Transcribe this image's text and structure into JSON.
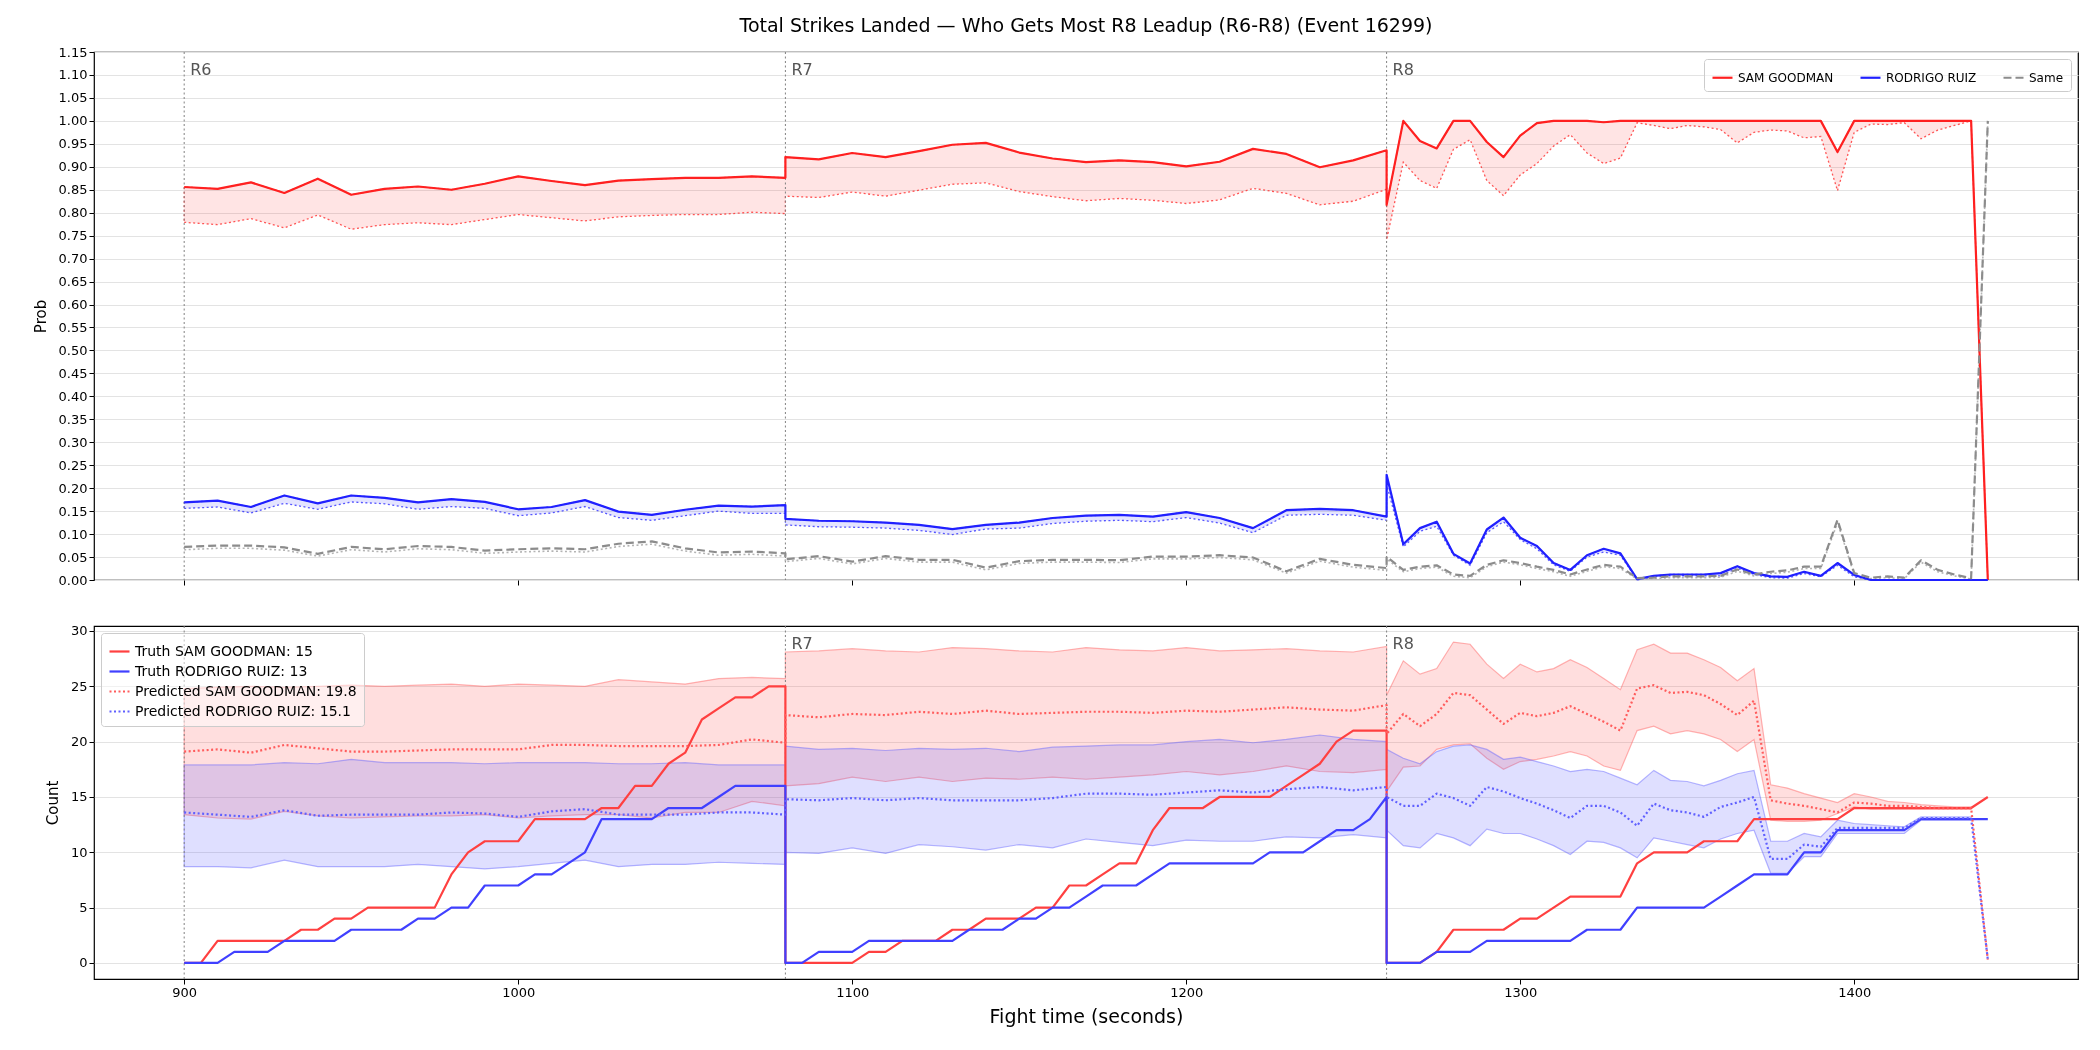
{
  "chart_data": [
    {
      "type": "line",
      "title": "Total Strikes Landed — Who Gets Most R8 Leadup (R6-R8) (Event 16299)",
      "ylabel": "Prob",
      "x": [
        900,
        910,
        920,
        930,
        940,
        950,
        960,
        970,
        980,
        990,
        1000,
        1010,
        1020,
        1030,
        1040,
        1050,
        1060,
        1070,
        1080,
        1080,
        1090,
        1100,
        1110,
        1120,
        1130,
        1140,
        1150,
        1160,
        1170,
        1180,
        1190,
        1200,
        1210,
        1220,
        1230,
        1240,
        1250,
        1260,
        1260,
        1265,
        1270,
        1275,
        1280,
        1285,
        1290,
        1295,
        1300,
        1305,
        1310,
        1315,
        1320,
        1325,
        1330,
        1335,
        1340,
        1345,
        1350,
        1355,
        1360,
        1365,
        1370,
        1375,
        1380,
        1385,
        1390,
        1395,
        1400,
        1405,
        1410,
        1415,
        1420,
        1425,
        1430,
        1435,
        1440
      ],
      "xlim": [
        873,
        1467
      ],
      "xticks": [
        900,
        1000,
        1100,
        1200,
        1300,
        1400
      ],
      "ylim": [
        0,
        1.15
      ],
      "yticks": [
        {
          "value": 0,
          "label": "0.00"
        },
        {
          "value": 0.05,
          "label": "0.05"
        },
        {
          "value": 0.1,
          "label": "0.10"
        },
        {
          "value": 0.15,
          "label": "0.15"
        },
        {
          "value": 0.2,
          "label": "0.20"
        },
        {
          "value": 0.25,
          "label": "0.25"
        },
        {
          "value": 0.3,
          "label": "0.30"
        },
        {
          "value": 0.35,
          "label": "0.35"
        },
        {
          "value": 0.4,
          "label": "0.40"
        },
        {
          "value": 0.45,
          "label": "0.45"
        },
        {
          "value": 0.5,
          "label": "0.50"
        },
        {
          "value": 0.55,
          "label": "0.55"
        },
        {
          "value": 0.6,
          "label": "0.60"
        },
        {
          "value": 0.65,
          "label": "0.65"
        },
        {
          "value": 0.7,
          "label": "0.70"
        },
        {
          "value": 0.75,
          "label": "0.75"
        },
        {
          "value": 0.8,
          "label": "0.80"
        },
        {
          "value": 0.85,
          "label": "0.85"
        },
        {
          "value": 0.9,
          "label": "0.90"
        },
        {
          "value": 0.95,
          "label": "0.95"
        },
        {
          "value": 1.0,
          "label": "1.00"
        },
        {
          "value": 1.05,
          "label": "1.05"
        },
        {
          "value": 1.1,
          "label": "1.10"
        },
        {
          "value": 1.15,
          "label": "1.15"
        }
      ],
      "tick_labels": "y",
      "grid": "y",
      "legend": "top right",
      "ref_lines": [
        {
          "axis": "x",
          "value": 900,
          "label": "R6",
          "color": "#808080",
          "line_style": "dotted"
        },
        {
          "axis": "x",
          "value": 1080,
          "label": "R7",
          "color": "#808080",
          "line_style": "dotted"
        },
        {
          "axis": "x",
          "value": 1260,
          "label": "R8",
          "color": "#808080",
          "line_style": "dotted"
        }
      ],
      "series": [
        {
          "name": "SAM GOODMAN",
          "color": "#ff2020",
          "line_style": "solid",
          "values": [
            0.856,
            0.852,
            0.866,
            0.843,
            0.874,
            0.839,
            0.852,
            0.857,
            0.85,
            0.863,
            0.879,
            0.869,
            0.86,
            0.87,
            0.873,
            0.876,
            0.876,
            0.879,
            0.876,
            0.921,
            0.916,
            0.93,
            0.921,
            0.934,
            0.948,
            0.952,
            0.931,
            0.918,
            0.91,
            0.914,
            0.91,
            0.901,
            0.911,
            0.939,
            0.928,
            0.899,
            0.914,
            0.936,
            0.817,
            1.0,
            0.956,
            0.94,
            1.0,
            1.0,
            0.954,
            0.921,
            0.968,
            0.995,
            1.0,
            1.0,
            1.0,
            0.997,
            1.0,
            1.0,
            1.0,
            1.0,
            1.0,
            1.0,
            1.0,
            1.0,
            1.0,
            1.0,
            1.0,
            1.0,
            1.0,
            0.932,
            1.0,
            1.0,
            1.0,
            1.0,
            1.0,
            1.0,
            1.0,
            1.0,
            0.0
          ],
          "lower": [
            0.779,
            0.774,
            0.787,
            0.767,
            0.795,
            0.764,
            0.774,
            0.778,
            0.774,
            0.785,
            0.796,
            0.789,
            0.782,
            0.791,
            0.794,
            0.796,
            0.796,
            0.801,
            0.798,
            0.836,
            0.833,
            0.845,
            0.836,
            0.849,
            0.862,
            0.865,
            0.846,
            0.835,
            0.826,
            0.831,
            0.827,
            0.82,
            0.828,
            0.853,
            0.842,
            0.817,
            0.825,
            0.851,
            0.741,
            0.91,
            0.87,
            0.853,
            0.938,
            0.959,
            0.87,
            0.837,
            0.882,
            0.907,
            0.945,
            0.97,
            0.93,
            0.907,
            0.919,
            0.996,
            0.99,
            0.983,
            0.99,
            0.987,
            0.981,
            0.952,
            0.975,
            0.98,
            0.978,
            0.963,
            0.966,
            0.848,
            0.975,
            0.993,
            0.992,
            0.996,
            0.961,
            0.98,
            0.99,
            1.0,
            0.0
          ],
          "upper": [
            0.856,
            0.852,
            0.866,
            0.843,
            0.874,
            0.839,
            0.852,
            0.857,
            0.85,
            0.863,
            0.879,
            0.869,
            0.86,
            0.87,
            0.873,
            0.876,
            0.876,
            0.879,
            0.876,
            0.921,
            0.916,
            0.93,
            0.921,
            0.934,
            0.948,
            0.952,
            0.931,
            0.918,
            0.91,
            0.914,
            0.91,
            0.901,
            0.911,
            0.939,
            0.928,
            0.899,
            0.914,
            0.936,
            0.817,
            1.0,
            0.956,
            0.94,
            1.0,
            1.0,
            0.954,
            0.921,
            0.968,
            0.995,
            1.0,
            1.0,
            1.0,
            0.997,
            1.0,
            1.0,
            1.0,
            1.0,
            1.0,
            1.0,
            1.0,
            1.0,
            1.0,
            1.0,
            1.0,
            1.0,
            1.0,
            0.932,
            1.0,
            1.0,
            1.0,
            1.0,
            1.0,
            1.0,
            1.0,
            1.0,
            0.0
          ]
        },
        {
          "name": "RODRIGO RUIZ",
          "color": "#2020ff",
          "line_style": "solid",
          "values": [
            0.169,
            0.173,
            0.159,
            0.184,
            0.167,
            0.184,
            0.179,
            0.169,
            0.176,
            0.17,
            0.154,
            0.159,
            0.174,
            0.149,
            0.142,
            0.153,
            0.162,
            0.16,
            0.163,
            0.133,
            0.129,
            0.128,
            0.125,
            0.12,
            0.111,
            0.12,
            0.125,
            0.135,
            0.14,
            0.142,
            0.138,
            0.148,
            0.135,
            0.113,
            0.152,
            0.155,
            0.152,
            0.138,
            0.229,
            0.078,
            0.113,
            0.127,
            0.057,
            0.036,
            0.11,
            0.136,
            0.092,
            0.074,
            0.037,
            0.022,
            0.054,
            0.068,
            0.058,
            0.002,
            0.009,
            0.012,
            0.012,
            0.012,
            0.015,
            0.03,
            0.015,
            0.008,
            0.007,
            0.018,
            0.009,
            0.037,
            0.011,
            0,
            0,
            0,
            0,
            0,
            0,
            0,
            0
          ],
          "lower": [
            0.156,
            0.159,
            0.146,
            0.167,
            0.154,
            0.17,
            0.166,
            0.154,
            0.16,
            0.156,
            0.14,
            0.146,
            0.16,
            0.136,
            0.13,
            0.14,
            0.15,
            0.145,
            0.145,
            0.12,
            0.116,
            0.115,
            0.113,
            0.108,
            0.099,
            0.111,
            0.113,
            0.123,
            0.128,
            0.13,
            0.127,
            0.136,
            0.124,
            0.103,
            0.141,
            0.143,
            0.141,
            0.13,
            0.208,
            0.072,
            0.106,
            0.117,
            0.054,
            0.032,
            0.103,
            0.127,
            0.088,
            0.068,
            0.033,
            0.019,
            0.05,
            0.061,
            0.054,
            0,
            0.007,
            0.009,
            0.009,
            0.009,
            0.009,
            0.026,
            0.012,
            0.005,
            0.004,
            0.014,
            0.007,
            0.032,
            0.007,
            0,
            0,
            0,
            0,
            0,
            0,
            0,
            0
          ],
          "upper": [
            0.169,
            0.173,
            0.159,
            0.184,
            0.167,
            0.184,
            0.179,
            0.169,
            0.176,
            0.17,
            0.154,
            0.159,
            0.174,
            0.149,
            0.142,
            0.153,
            0.162,
            0.16,
            0.163,
            0.133,
            0.129,
            0.128,
            0.125,
            0.12,
            0.111,
            0.12,
            0.125,
            0.135,
            0.14,
            0.142,
            0.138,
            0.148,
            0.135,
            0.113,
            0.152,
            0.155,
            0.152,
            0.138,
            0.229,
            0.078,
            0.113,
            0.127,
            0.057,
            0.036,
            0.11,
            0.136,
            0.092,
            0.074,
            0.037,
            0.022,
            0.054,
            0.068,
            0.058,
            0.002,
            0.009,
            0.012,
            0.012,
            0.012,
            0.015,
            0.03,
            0.015,
            0.008,
            0.007,
            0.018,
            0.009,
            0.037,
            0.011,
            0,
            0,
            0,
            0,
            0,
            0,
            0,
            0
          ]
        },
        {
          "color": "#b4b4b4",
          "line_style": "dotted",
          "values": [
            0.066,
            0.069,
            0.069,
            0.065,
            0.052,
            0.066,
            0.061,
            0.068,
            0.066,
            0.058,
            0.061,
            0.063,
            0.061,
            0.073,
            0.078,
            0.063,
            0.054,
            0.056,
            0.052,
            0.04,
            0.047,
            0.035,
            0.047,
            0.039,
            0.039,
            0.022,
            0.036,
            0.039,
            0.039,
            0.038,
            0.046,
            0.046,
            0.049,
            0.044,
            0.015,
            0.041,
            0.028,
            0.021,
            0.046,
            0.018,
            0.025,
            0.028,
            0.008,
            0.005,
            0.029,
            0.039,
            0.033,
            0.025,
            0.018,
            0.008,
            0.019,
            0.029,
            0.025,
            0.002,
            0.003,
            0.005,
            0.005,
            0.005,
            0.006,
            0.019,
            0.009,
            0.014,
            0.017,
            0.025,
            0.025,
            0.125,
            0.012,
            0.003,
            0.005,
            0.003,
            0.039,
            0.018,
            0.009,
            0.002,
            1.0
          ]
        },
        {
          "name": "Same",
          "color": "#8c8c8c",
          "line_style": "dashed",
          "values": [
            0.072,
            0.075,
            0.075,
            0.071,
            0.057,
            0.072,
            0.067,
            0.074,
            0.072,
            0.064,
            0.067,
            0.069,
            0.067,
            0.079,
            0.084,
            0.069,
            0.06,
            0.062,
            0.058,
            0.045,
            0.052,
            0.04,
            0.052,
            0.044,
            0.044,
            0.027,
            0.041,
            0.044,
            0.044,
            0.043,
            0.051,
            0.051,
            0.054,
            0.049,
            0.019,
            0.046,
            0.033,
            0.026,
            0.051,
            0.022,
            0.029,
            0.032,
            0.012,
            0.009,
            0.033,
            0.043,
            0.037,
            0.029,
            0.022,
            0.012,
            0.023,
            0.033,
            0.029,
            0.004,
            0.005,
            0.008,
            0.008,
            0.008,
            0.009,
            0.023,
            0.012,
            0.018,
            0.021,
            0.029,
            0.029,
            0.131,
            0.015,
            0.005,
            0.008,
            0.005,
            0.043,
            0.022,
            0.012,
            0.004,
            1.0
          ]
        }
      ]
    },
    {
      "type": "line",
      "xlabel": "Fight time (seconds)",
      "ylabel": "Count",
      "x": [
        900,
        910,
        920,
        930,
        940,
        950,
        960,
        970,
        980,
        990,
        1000,
        1010,
        1020,
        1030,
        1040,
        1050,
        1060,
        1070,
        1080,
        1080,
        1090,
        1100,
        1110,
        1120,
        1130,
        1140,
        1150,
        1160,
        1170,
        1180,
        1190,
        1200,
        1210,
        1220,
        1230,
        1240,
        1250,
        1260,
        1260,
        1265,
        1270,
        1275,
        1280,
        1285,
        1290,
        1295,
        1300,
        1305,
        1310,
        1315,
        1320,
        1325,
        1330,
        1335,
        1340,
        1345,
        1350,
        1355,
        1360,
        1365,
        1370,
        1375,
        1380,
        1385,
        1390,
        1395,
        1400,
        1405,
        1410,
        1415,
        1420,
        1425,
        1430,
        1435,
        1440
      ],
      "xlim": [
        873,
        1467
      ],
      "xticks": [
        900,
        1000,
        1100,
        1200,
        1300,
        1400
      ],
      "ylim": [
        -1.45,
        30.45
      ],
      "yticks": [
        0,
        5,
        10,
        15,
        20,
        25,
        30
      ],
      "grid": "y",
      "legend": "top left",
      "ref_lines": [
        {
          "axis": "x",
          "value": 900,
          "label": null,
          "color": "#808080",
          "line_style": "dotted"
        },
        {
          "axis": "x",
          "value": 1080,
          "label": "R7",
          "color": "#808080",
          "line_style": "dotted"
        },
        {
          "axis": "x",
          "value": 1260,
          "label": "R8",
          "color": "#808080",
          "line_style": "dotted"
        }
      ],
      "series": [
        {
          "name": "Truth SAM GOODMAN: 15",
          "color": "#ff4040",
          "line_style": "solid",
          "x": [
            900,
            905,
            910,
            915,
            920,
            925,
            930,
            935,
            940,
            945,
            950,
            955,
            960,
            965,
            970,
            975,
            980,
            985,
            990,
            995,
            1000,
            1005,
            1010,
            1015,
            1020,
            1025,
            1030,
            1035,
            1040,
            1045,
            1050,
            1055,
            1060,
            1065,
            1070,
            1075,
            1080,
            1080,
            1085,
            1090,
            1095,
            1100,
            1105,
            1110,
            1115,
            1120,
            1125,
            1130,
            1135,
            1140,
            1145,
            1150,
            1155,
            1160,
            1165,
            1170,
            1175,
            1180,
            1185,
            1190,
            1195,
            1200,
            1205,
            1210,
            1215,
            1220,
            1225,
            1230,
            1235,
            1240,
            1245,
            1250,
            1255,
            1260,
            1260,
            1265,
            1270,
            1275,
            1280,
            1285,
            1290,
            1295,
            1300,
            1305,
            1310,
            1315,
            1320,
            1325,
            1330,
            1335,
            1340,
            1345,
            1350,
            1355,
            1360,
            1365,
            1370,
            1375,
            1380,
            1385,
            1390,
            1395,
            1400,
            1405,
            1410,
            1415,
            1420,
            1425,
            1430,
            1435,
            1440
          ],
          "values": [
            0,
            0,
            2,
            2,
            2,
            2,
            2,
            3,
            3,
            4,
            4,
            5,
            5,
            5,
            5,
            5,
            8,
            10,
            11,
            11,
            11,
            13,
            13,
            13,
            13,
            14,
            14,
            16,
            16,
            18,
            19,
            22,
            23,
            24,
            24,
            25,
            25,
            0,
            0,
            0,
            0,
            0,
            1,
            1,
            2,
            2,
            2,
            3,
            3,
            4,
            4,
            4,
            5,
            5,
            7,
            7,
            8,
            9,
            9,
            12,
            14,
            14,
            14,
            15,
            15,
            15,
            15,
            16,
            17,
            18,
            20,
            21,
            21,
            21,
            0,
            0,
            0,
            1,
            3,
            3,
            3,
            3,
            4,
            4,
            5,
            6,
            6,
            6,
            6,
            9,
            10,
            10,
            10,
            11,
            11,
            11,
            13,
            13,
            13,
            13,
            13,
            13,
            14,
            14,
            14,
            14,
            14,
            14,
            14,
            14,
            15
          ]
        },
        {
          "name": "Truth RODRIGO RUIZ: 13",
          "color": "#4040ff",
          "line_style": "solid",
          "x": [
            900,
            905,
            910,
            915,
            920,
            925,
            930,
            935,
            940,
            945,
            950,
            955,
            960,
            965,
            970,
            975,
            980,
            985,
            990,
            995,
            1000,
            1005,
            1010,
            1015,
            1020,
            1025,
            1030,
            1035,
            1040,
            1045,
            1050,
            1055,
            1060,
            1065,
            1070,
            1075,
            1080,
            1080,
            1085,
            1090,
            1095,
            1100,
            1105,
            1110,
            1115,
            1120,
            1125,
            1130,
            1135,
            1140,
            1145,
            1150,
            1155,
            1160,
            1165,
            1170,
            1175,
            1180,
            1185,
            1190,
            1195,
            1200,
            1205,
            1210,
            1215,
            1220,
            1225,
            1230,
            1235,
            1240,
            1245,
            1250,
            1255,
            1260,
            1260,
            1265,
            1270,
            1275,
            1280,
            1285,
            1290,
            1295,
            1300,
            1305,
            1310,
            1315,
            1320,
            1325,
            1330,
            1335,
            1340,
            1345,
            1350,
            1355,
            1360,
            1365,
            1370,
            1375,
            1380,
            1385,
            1390,
            1395,
            1400,
            1405,
            1410,
            1415,
            1420,
            1425,
            1430,
            1435,
            1440
          ],
          "values": [
            0,
            0,
            0,
            1,
            1,
            1,
            2,
            2,
            2,
            2,
            3,
            3,
            3,
            3,
            4,
            4,
            5,
            5,
            7,
            7,
            7,
            8,
            8,
            9,
            10,
            13,
            13,
            13,
            13,
            14,
            14,
            14,
            15,
            16,
            16,
            16,
            16,
            0,
            0,
            1,
            1,
            1,
            2,
            2,
            2,
            2,
            2,
            2,
            3,
            3,
            3,
            4,
            4,
            5,
            5,
            6,
            7,
            7,
            7,
            8,
            9,
            9,
            9,
            9,
            9,
            9,
            10,
            10,
            10,
            11,
            12,
            12,
            13,
            15,
            0,
            0,
            0,
            1,
            1,
            1,
            2,
            2,
            2,
            2,
            2,
            2,
            3,
            3,
            3,
            5,
            5,
            5,
            5,
            5,
            6,
            7,
            8,
            8,
            8,
            10,
            10,
            12,
            12,
            12,
            12,
            12,
            13,
            13,
            13,
            13,
            13
          ]
        },
        {
          "name": "Predicted SAM GOODMAN: 19.8",
          "color": "#ff5c5c",
          "line_style": "dotted",
          "values": [
            19.1,
            19.3,
            19.0,
            19.7,
            19.4,
            19.1,
            19.1,
            19.2,
            19.3,
            19.3,
            19.3,
            19.7,
            19.7,
            19.6,
            19.6,
            19.6,
            19.7,
            20.2,
            19.9,
            22.4,
            22.2,
            22.5,
            22.4,
            22.7,
            22.5,
            22.8,
            22.5,
            22.6,
            22.7,
            22.7,
            22.6,
            22.8,
            22.7,
            22.9,
            23.1,
            22.9,
            22.8,
            23.3,
            20.7,
            22.5,
            21.4,
            22.5,
            24.4,
            24.2,
            22.9,
            21.6,
            22.6,
            22.3,
            22.6,
            23.2,
            22.5,
            21.8,
            21.0,
            24.8,
            25.1,
            24.4,
            24.5,
            24.2,
            23.4,
            22.4,
            23.7,
            14.7,
            14.4,
            14.2,
            13.9,
            13.6,
            14.5,
            14.4,
            14.2,
            14.2,
            14.1,
            14.0,
            14.0,
            14.0,
            0.3
          ],
          "lower": [
            13.4,
            13.1,
            13.0,
            13.7,
            13.3,
            13.1,
            13.2,
            13.3,
            13.3,
            13.4,
            13.1,
            13.3,
            13.4,
            13.4,
            13.1,
            13.6,
            13.6,
            14.6,
            14.2,
            16.0,
            16.2,
            16.8,
            16.4,
            16.8,
            16.4,
            16.7,
            16.6,
            16.8,
            16.6,
            16.8,
            17.0,
            17.3,
            17.0,
            17.3,
            17.8,
            17.3,
            17.2,
            17.5,
            15.5,
            17.7,
            17.8,
            19.3,
            19.7,
            19.8,
            18.5,
            17.5,
            18.2,
            18.4,
            18.7,
            19.1,
            18.7,
            17.8,
            17.4,
            21.0,
            21.4,
            20.7,
            21.0,
            20.7,
            20.2,
            19.1,
            20.2,
            12.9,
            12.8,
            12.8,
            12.9,
            13.5,
            14.1,
            13.9,
            13.9,
            13.9,
            13.9,
            13.9,
            13.9,
            13.9,
            null
          ],
          "upper": [
            24.8,
            24.9,
            25.0,
            24.9,
            25.0,
            25.1,
            25.0,
            25.1,
            25.2,
            25.0,
            25.2,
            25.1,
            25.0,
            25.6,
            25.4,
            25.2,
            25.7,
            25.8,
            25.7,
            28.1,
            28.2,
            28.4,
            28.2,
            28.1,
            28.5,
            28.4,
            28.2,
            28.1,
            28.5,
            28.3,
            28.2,
            28.5,
            28.2,
            28.3,
            28.4,
            28.2,
            28.1,
            28.6,
            24.2,
            27.3,
            26.1,
            26.6,
            29.0,
            28.8,
            27.0,
            25.7,
            27.0,
            26.3,
            26.6,
            27.4,
            26.7,
            25.7,
            24.7,
            28.3,
            28.8,
            28.0,
            28.0,
            27.4,
            26.7,
            25.5,
            26.6,
            16.1,
            15.8,
            15.3,
            14.9,
            14.5,
            15.3,
            15.0,
            14.6,
            14.5,
            14.3,
            14.2,
            14.1,
            14.1,
            null
          ]
        },
        {
          "name": "Predicted RODRIGO RUIZ: 15.1",
          "color": "#6060ff",
          "line_style": "dotted",
          "values": [
            13.6,
            13.4,
            13.2,
            13.8,
            13.3,
            13.4,
            13.4,
            13.4,
            13.6,
            13.5,
            13.2,
            13.7,
            13.9,
            13.4,
            13.4,
            13.4,
            13.6,
            13.6,
            13.4,
            14.8,
            14.7,
            14.9,
            14.7,
            14.9,
            14.7,
            14.7,
            14.7,
            14.9,
            15.3,
            15.3,
            15.2,
            15.4,
            15.6,
            15.4,
            15.7,
            15.9,
            15.6,
            15.9,
            15.0,
            14.2,
            14.2,
            15.3,
            14.9,
            14.2,
            15.9,
            15.5,
            14.9,
            14.4,
            13.8,
            13.1,
            14.2,
            14.2,
            13.6,
            12.4,
            14.4,
            13.8,
            13.6,
            13.2,
            14.1,
            14.5,
            15.0,
            9.4,
            9.4,
            10.7,
            10.5,
            12.2,
            12.2,
            12.2,
            12.2,
            12.2,
            13.1,
            13.1,
            13.1,
            13.1,
            0.3
          ],
          "lower": [
            8.7,
            8.7,
            8.6,
            9.3,
            8.7,
            8.7,
            8.7,
            8.9,
            8.7,
            8.5,
            8.7,
            9.0,
            9.3,
            8.7,
            8.9,
            8.9,
            9.1,
            9.0,
            8.9,
            10.0,
            9.9,
            10.4,
            9.9,
            10.7,
            10.5,
            10.2,
            10.7,
            10.4,
            11.2,
            10.9,
            10.6,
            11.1,
            11.0,
            11.0,
            11.4,
            11.3,
            11.6,
            11.3,
            12.0,
            10.6,
            10.4,
            11.7,
            11.3,
            10.6,
            12.1,
            11.7,
            11.7,
            11.2,
            10.6,
            9.8,
            11.0,
            10.9,
            10.4,
            9.5,
            11.3,
            11.0,
            10.7,
            10.4,
            11.2,
            11.7,
            12.0,
            8.1,
            8.1,
            9.6,
            9.6,
            11.7,
            11.7,
            11.7,
            11.7,
            11.7,
            12.9,
            12.9,
            12.9,
            12.9,
            null
          ],
          "upper": [
            17.9,
            17.9,
            17.9,
            18.1,
            18.0,
            18.4,
            18.1,
            18.1,
            18.1,
            18.0,
            18.1,
            18.1,
            18.1,
            18.0,
            18.0,
            18.1,
            17.9,
            17.9,
            17.9,
            19.6,
            19.3,
            19.4,
            19.2,
            19.4,
            19.3,
            19.4,
            19.1,
            19.5,
            19.6,
            19.7,
            19.7,
            20.0,
            20.2,
            19.9,
            20.2,
            20.6,
            20.2,
            20.0,
            19.3,
            18.5,
            18.0,
            19.1,
            19.6,
            19.7,
            19.3,
            18.4,
            18.6,
            18.2,
            17.8,
            17.3,
            17.5,
            17.3,
            16.7,
            16.1,
            17.4,
            16.5,
            16.4,
            16.0,
            16.5,
            17.1,
            17.4,
            11.0,
            11.0,
            11.7,
            11.4,
            12.9,
            12.6,
            12.5,
            12.4,
            12.3,
            13.2,
            13.2,
            13.2,
            13.2,
            null
          ]
        }
      ]
    }
  ]
}
